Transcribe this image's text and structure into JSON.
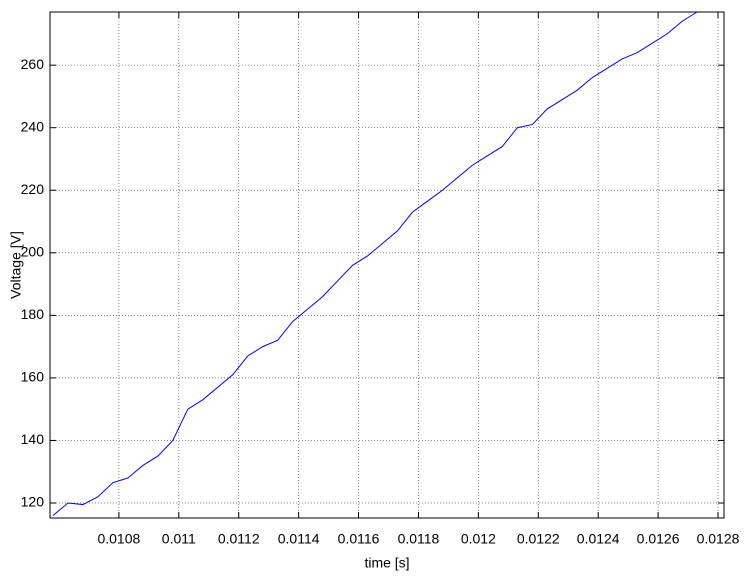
{
  "chart_data": {
    "type": "line",
    "xlabel": "time [s]",
    "ylabel": "Voltage [V]",
    "x": [
      0.01058,
      0.01063,
      0.01068,
      0.01073,
      0.01078,
      0.01083,
      0.01088,
      0.01093,
      0.01098,
      0.01103,
      0.01108,
      0.01113,
      0.01118,
      0.01123,
      0.01128,
      0.01133,
      0.01138,
      0.01143,
      0.01148,
      0.01153,
      0.01158,
      0.01163,
      0.01168,
      0.01173,
      0.01178,
      0.01183,
      0.01188,
      0.01193,
      0.01198,
      0.01203,
      0.01208,
      0.01213,
      0.01218,
      0.01223,
      0.01228,
      0.01233,
      0.01238,
      0.01243,
      0.01248,
      0.01253,
      0.01258,
      0.01263,
      0.01268,
      0.01273
    ],
    "series": [
      {
        "color": "#0000ff",
        "values": [
          116,
          120,
          119.5,
          122,
          126.5,
          128,
          132,
          135,
          140,
          150,
          153,
          157,
          161,
          167,
          170,
          172,
          178,
          182,
          186,
          191,
          196,
          199,
          203,
          207,
          213,
          216.5,
          220,
          224,
          228,
          231,
          234,
          240,
          241,
          246,
          249,
          252,
          256,
          259,
          262,
          264,
          267,
          270,
          274,
          277
        ]
      }
    ],
    "xlim": [
      0.01057,
      0.01282
    ],
    "xticks": [
      0.0108,
      0.011,
      0.0112,
      0.0114,
      0.0116,
      0.0118,
      0.012,
      0.0122,
      0.0124,
      0.0126,
      0.0128
    ],
    "ylim": [
      115.2,
      277
    ],
    "yticks": [
      120,
      140,
      160,
      180,
      200,
      220,
      240,
      260
    ],
    "grid": true
  }
}
